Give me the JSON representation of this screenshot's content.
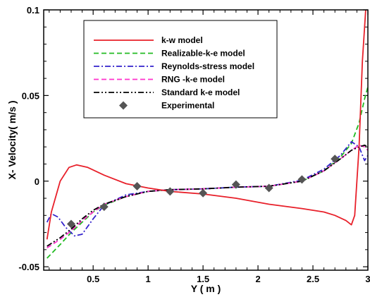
{
  "chart_data": {
    "type": "line",
    "xlabel": "Y ( m )",
    "ylabel": "X- Velocity( m/s )",
    "xlim": [
      0.05,
      3.0
    ],
    "ylim": [
      -0.052,
      0.1
    ],
    "xticks": [
      0.5,
      1,
      1.5,
      2,
      2.5,
      3
    ],
    "xtick_labels": [
      "0.5",
      "1",
      "1.5",
      "2",
      "2.5",
      "3"
    ],
    "yticks": [
      -0.05,
      0,
      0.05,
      0.1
    ],
    "ytick_labels": [
      "-0.05",
      "0",
      "0.05",
      "0.1"
    ],
    "grid": false,
    "legend_position": "top-center",
    "series": [
      {
        "name": "k-w model",
        "color": "#e8202a",
        "dash": "solid",
        "x": [
          0.08,
          0.12,
          0.2,
          0.28,
          0.35,
          0.45,
          0.6,
          0.8,
          1.0,
          1.2,
          1.5,
          1.8,
          2.1,
          2.4,
          2.6,
          2.7,
          2.8,
          2.85,
          2.88,
          2.92,
          2.95,
          2.98
        ],
        "y": [
          -0.034,
          -0.018,
          0.0,
          0.008,
          0.0095,
          0.008,
          0.0035,
          -0.0015,
          -0.004,
          -0.006,
          -0.0075,
          -0.01,
          -0.0135,
          -0.016,
          -0.018,
          -0.02,
          -0.023,
          -0.0255,
          -0.02,
          0.02,
          0.07,
          0.1
        ]
      },
      {
        "name": "Realizable-k-e model",
        "color": "#22bb22",
        "dash": "dashed",
        "x": [
          0.08,
          0.2,
          0.3,
          0.4,
          0.5,
          0.6,
          0.8,
          1.0,
          1.2,
          1.5,
          1.8,
          2.1,
          2.4,
          2.6,
          2.75,
          2.85,
          2.92,
          2.97,
          3.0
        ],
        "y": [
          -0.045,
          -0.037,
          -0.03,
          -0.024,
          -0.018,
          -0.014,
          -0.009,
          -0.006,
          -0.005,
          -0.0045,
          -0.0035,
          -0.003,
          0.0,
          0.006,
          0.014,
          0.022,
          0.034,
          0.048,
          0.055
        ]
      },
      {
        "name": "Reynolds-stress model",
        "color": "#3322cc",
        "dash": "dashdot",
        "x": [
          0.08,
          0.12,
          0.18,
          0.25,
          0.33,
          0.4,
          0.5,
          0.6,
          0.8,
          1.0,
          1.2,
          1.5,
          1.8,
          2.1,
          2.4,
          2.6,
          2.75,
          2.85,
          2.92,
          2.97,
          3.0
        ],
        "y": [
          -0.024,
          -0.019,
          -0.021,
          -0.027,
          -0.032,
          -0.031,
          -0.022,
          -0.014,
          -0.008,
          -0.006,
          -0.005,
          -0.0045,
          -0.0035,
          -0.003,
          0.0005,
          0.007,
          0.015,
          0.023,
          0.02,
          0.012,
          0.015
        ]
      },
      {
        "name": "RNG -k-e model",
        "color": "#ff33cc",
        "dash": "dashed",
        "x": [
          0.08,
          0.2,
          0.3,
          0.4,
          0.5,
          0.6,
          0.8,
          1.0,
          1.2,
          1.5,
          1.8,
          2.1,
          2.4,
          2.6,
          2.75,
          2.85,
          2.92,
          2.97,
          3.0
        ],
        "y": [
          -0.039,
          -0.034,
          -0.029,
          -0.023,
          -0.018,
          -0.0135,
          -0.009,
          -0.006,
          -0.005,
          -0.0045,
          -0.0035,
          -0.003,
          0.0,
          0.006,
          0.013,
          0.018,
          0.021,
          0.02,
          0.018
        ]
      },
      {
        "name": "Standard k-e model",
        "color": "#000000",
        "dash": "dashdotdot",
        "x": [
          0.08,
          0.2,
          0.3,
          0.4,
          0.5,
          0.6,
          0.8,
          1.0,
          1.2,
          1.5,
          1.8,
          2.1,
          2.4,
          2.6,
          2.75,
          2.85,
          2.92,
          2.97,
          3.0
        ],
        "y": [
          -0.038,
          -0.033,
          -0.028,
          -0.022,
          -0.017,
          -0.0135,
          -0.009,
          -0.006,
          -0.005,
          -0.0045,
          -0.0035,
          -0.003,
          0.0,
          0.006,
          0.013,
          0.018,
          0.02,
          0.021,
          0.02
        ]
      },
      {
        "name": "Experimental",
        "color": "#555555",
        "marker": "diamond",
        "x": [
          0.3,
          0.6,
          0.9,
          1.2,
          1.5,
          1.8,
          2.1,
          2.4,
          2.7
        ],
        "y": [
          -0.025,
          -0.015,
          -0.003,
          -0.006,
          -0.007,
          -0.002,
          -0.004,
          0.001,
          0.013
        ]
      }
    ]
  }
}
